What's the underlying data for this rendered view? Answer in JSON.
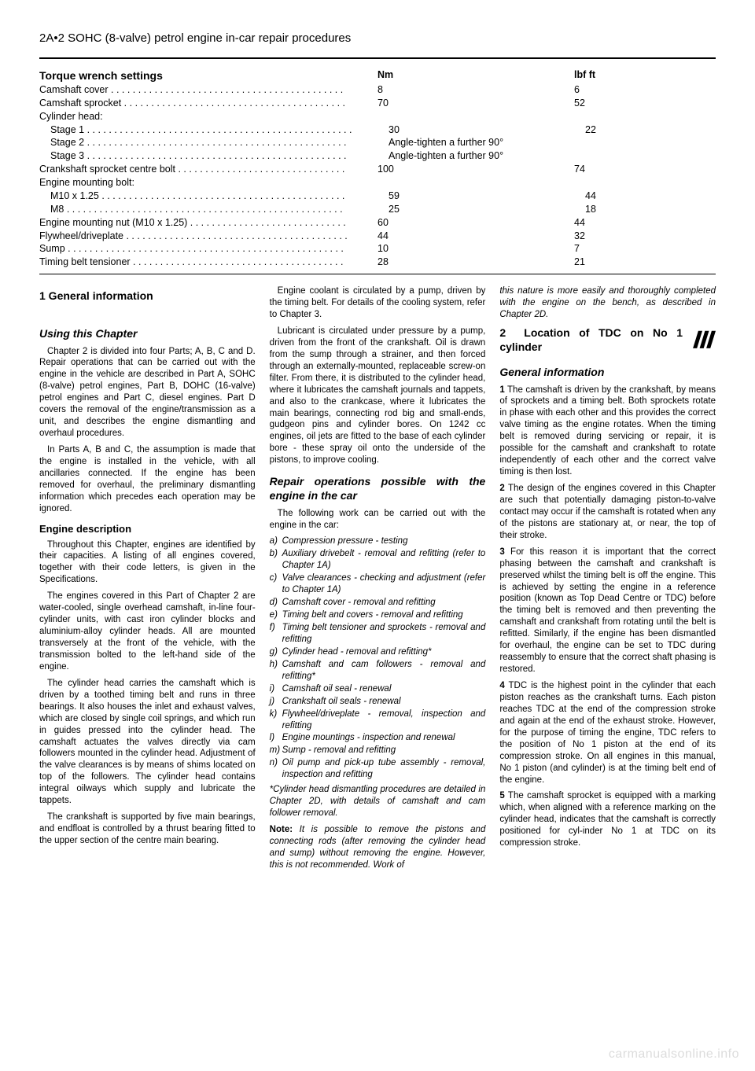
{
  "header": "2A•2  SOHC (8-valve) petrol engine in-car repair procedures",
  "torque": {
    "title": "Torque wrench settings",
    "col_nm": "Nm",
    "col_lbf": "lbf ft",
    "rows": [
      {
        "label": "Camshaft cover  . . . . . . . . . . . . . . . . . . . . . . . . . . . . . . . . . . . . . . . . . . .",
        "nm": "8",
        "lbf": "6",
        "indent": 0
      },
      {
        "label": "Camshaft sprocket . . . . . . . . . . . . . . . . . . . . . . . . . . . . . . . . . . . . . . . . .",
        "nm": "70",
        "lbf": "52",
        "indent": 0
      },
      {
        "label": "Cylinder head:",
        "nm": "",
        "lbf": "",
        "indent": 0
      },
      {
        "label": "Stage 1 . . . . . . . . . . . . . . . . . . . . . . . . . . . . . . . . . . . . . . . . . . . . . . . . .",
        "nm": "30",
        "lbf": "22",
        "indent": 1
      },
      {
        "label": "Stage 2 . . . . . . . . . . . . . . . . . . . . . . . . . .  . . . . . . . . . . . . . . . . . . . . . .",
        "nm": "Angle-tighten a further 90°",
        "lbf": "",
        "indent": 1
      },
      {
        "label": "Stage 3 . . . . . . . . . . . . . . . . . . . . . . . . .  . . . . . . . . . . . . . . . . . . . . . . .",
        "nm": "Angle-tighten a further 90°",
        "lbf": "",
        "indent": 1
      },
      {
        "label": "Crankshaft sprocket centre bolt . . . . . . . . . . . . . . . . . . . . . . . . . . . . . . .",
        "nm": "100",
        "lbf": "74",
        "indent": 0
      },
      {
        "label": "Engine mounting bolt:",
        "nm": "",
        "lbf": "",
        "indent": 0
      },
      {
        "label": "M10 x 1.25 . . . . . . . . . . . . . . . . . . . . . . . . . . . . . . . . . . . . . . . . . . . . .",
        "nm": "59",
        "lbf": "44",
        "indent": 1
      },
      {
        "label": "M8  . . . . . . . . . . . . . . . . . . . . . . . . . . . . . . . . . . . . . . . . . . . . . . . . . . .",
        "nm": "25",
        "lbf": "18",
        "indent": 1
      },
      {
        "label": "Engine mounting nut (M10 x 1.25) . . . . . . . . . . . . . . . . . . . . . . . . . . . . .",
        "nm": "60",
        "lbf": "44",
        "indent": 0
      },
      {
        "label": "Flywheel/driveplate . . . . . . . . . . . . . . . . . . . . . . . . . . . . . . . . . . . . . . . . .",
        "nm": "44",
        "lbf": "32",
        "indent": 0
      },
      {
        "label": "Sump  . . . . . . . . . . . . . . . . . . . . . . . . . . . . . . . . . . . . . . . . . . . . . . . . . . .",
        "nm": "10",
        "lbf": "7",
        "indent": 0
      },
      {
        "label": "Timing belt tensioner  . . . .  . . . . . . . . . . . . . . . . . . . . . . . . . . . . . . . . . . .",
        "nm": "28",
        "lbf": "21",
        "indent": 0
      }
    ]
  },
  "col1": {
    "h1": "1   General information",
    "h_using": "Using this Chapter",
    "p1": "Chapter 2 is divided into four Parts; A, B, C and D. Repair operations that can be carried out with the engine in the vehicle are described in Part A, SOHC (8-valve) petrol engines, Part B, DOHC (16-valve) petrol engines and Part C, diesel engines. Part D covers the removal of the engine/transmission as a unit, and describes the engine dismantling and overhaul procedures.",
    "p2": "In Parts A, B and C, the assumption is made that the engine is installed in the vehicle, with all ancillaries connected. If the engine has been removed for overhaul, the preliminary dismantling information which precedes each operation may be ignored.",
    "h_desc": "Engine description",
    "p3": "Throughout this Chapter, engines are identified by their capacities. A listing of all engines covered, together with their code letters, is given in the Specifications.",
    "p4": "The engines covered in this Part of Chapter 2 are water-cooled, single overhead camshaft, in-line four-cylinder units, with cast iron cylinder blocks and aluminium-alloy cylinder heads. All are mounted transversely at the front of the vehicle, with the transmission bolted to the left-hand side of the engine.",
    "p5": "The cylinder head carries the camshaft which is driven by a toothed timing belt and runs in three bearings. It also houses the inlet and exhaust valves, which are closed by single coil springs, and which run in guides pressed into the cylinder head. The camshaft actuates the valves directly via cam followers mounted in the cylinder head. Adjustment of the valve clearances is by means of shims located on top of the followers. The cylinder head contains integral oilways which supply and lubricate the tappets.",
    "p6": "The crankshaft is supported by five main bearings, and endfloat is controlled by a thrust bearing fitted to the upper section of the centre main bearing."
  },
  "col2": {
    "p1": "Engine coolant is circulated by a pump, driven by the timing belt. For details of the cooling system, refer to Chapter 3.",
    "p2": "Lubricant is circulated under pressure by a pump, driven from the front of the crankshaft. Oil is drawn from the sump through a strainer, and then forced through an externally-mounted, replaceable screw-on filter. From there, it is distributed to the cylinder head, where it lubricates the camshaft journals and tappets, and also to the crankcase, where it lubricates the main bearings, connecting rod big and small-ends, gudgeon pins and cylinder bores. On 1242 cc engines, oil jets are fitted to the base of each cylinder bore - these spray oil onto the underside of the pistons, to improve cooling.",
    "h_repair": "Repair operations possible with the engine in the car",
    "p3": "The following work can be carried out with the engine in the car:",
    "ops": [
      {
        "l": "a)",
        "t": "Compression pressure - testing"
      },
      {
        "l": "b)",
        "t": "Auxiliary drivebelt - removal and refitting (refer to Chapter 1A)"
      },
      {
        "l": "c)",
        "t": "Valve clearances - checking and adjustment (refer to Chapter 1A)"
      },
      {
        "l": "d)",
        "t": "Camshaft cover - removal and refitting"
      },
      {
        "l": "e)",
        "t": "Timing belt and covers - removal and refitting"
      },
      {
        "l": "f)",
        "t": "Timing belt tensioner and sprockets - removal and refitting"
      },
      {
        "l": "g)",
        "t": "Cylinder head - removal and refitting*"
      },
      {
        "l": "h)",
        "t": "Camshaft and cam followers - removal and refitting*"
      },
      {
        "l": "i)",
        "t": "Camshaft oil seal - renewal"
      },
      {
        "l": "j)",
        "t": "Crankshaft oil seals - renewal"
      },
      {
        "l": "k)",
        "t": "Flywheel/driveplate - removal, inspection and refitting"
      },
      {
        "l": "l)",
        "t": "Engine mountings - inspection and renewal"
      },
      {
        "l": "m)",
        "t": "Sump - removal and refitting"
      },
      {
        "l": "n)",
        "t": "Oil pump and pick-up tube assembly - removal, inspection and refitting"
      }
    ],
    "foot": "*Cylinder head dismantling procedures are detailed in Chapter 2D, with details of camshaft and cam follower removal.",
    "note_label": "Note:",
    "note": " It is possible to remove the pistons and connecting rods (after removing the cylinder head and sump) without removing the engine. However, this is not recommended. Work of"
  },
  "col3": {
    "p_cont": "this nature is more easily and thoroughly completed with the engine on the bench, as described in Chapter 2D.",
    "h2_num": "2",
    "h2": "Location of TDC on No 1 cylinder",
    "h_gen": "General information",
    "n1": "1",
    "p1": " The camshaft is driven by the crankshaft, by means of sprockets and a timing belt. Both sprockets rotate in phase with each other and this provides the correct valve timing as the engine rotates. When the timing belt is removed during servicing or repair, it is possible for the camshaft and crankshaft to rotate independently of each other and the correct valve timing is then lost.",
    "n2": "2",
    "p2": " The design of the engines covered in this Chapter are such that potentially damaging piston-to-valve contact may occur if the camshaft is rotated when any of the pistons are stationary at, or near, the top of their stroke.",
    "n3": "3",
    "p3": " For this reason it is important that the correct phasing between the camshaft and crankshaft is preserved whilst the timing belt is off the engine. This is achieved by setting the engine in a reference position (known as Top Dead Centre or TDC) before the timing belt is removed and then preventing the camshaft and crankshaft from rotating until the belt is refitted. Similarly, if the engine has been dismantled for overhaul, the engine can be set to TDC during reassembly to ensure that the correct shaft phasing is restored.",
    "n4": "4",
    "p4": " TDC is the highest point in the cylinder that each piston reaches as the crankshaft turns. Each piston reaches TDC at the end of the compression stroke and again at the end of the exhaust stroke. However, for the purpose of timing the engine, TDC refers to the position of No 1 piston at the end of its compression stroke. On all engines in this manual, No 1 piston (and cylinder) is at the timing belt end of the engine.",
    "n5": "5",
    "p5": " The camshaft sprocket is equipped with a marking which, when aligned with a reference marking on the cylinder head, indicates that the camshaft is correctly positioned for cyl-inder No 1 at TDC on its compression stroke."
  },
  "watermark": "carmanualsonline.info"
}
